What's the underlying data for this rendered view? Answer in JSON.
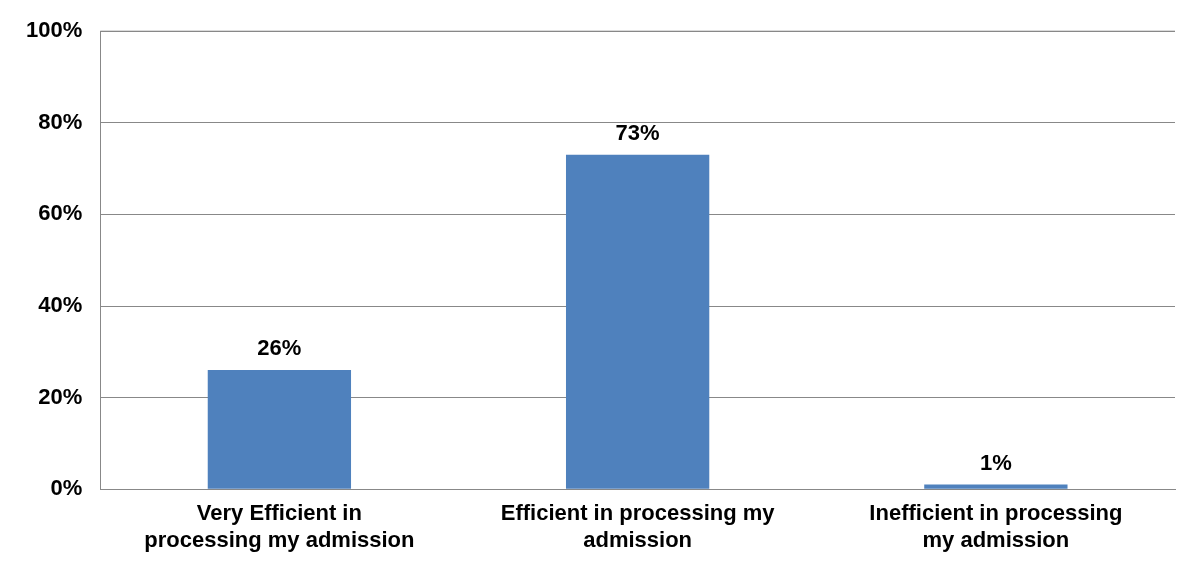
{
  "chart_data": {
    "type": "bar",
    "categories": [
      "Very Efficient in processing my admission",
      "Efficient in processing my admission",
      "Inefficient in processing my admission"
    ],
    "values": [
      26,
      73,
      1
    ],
    "color": "#4f81bd",
    "ylim": [
      0,
      100
    ],
    "yticks": [
      {
        "value": 0,
        "label": "0%"
      },
      {
        "value": 20,
        "label": "20%"
      },
      {
        "value": 40,
        "label": "40%"
      },
      {
        "value": 60,
        "label": "60%"
      },
      {
        "value": 80,
        "label": "80%"
      },
      {
        "value": 100,
        "label": "100%"
      }
    ],
    "grid": "y",
    "data_labels": true,
    "value_labels": [
      "26%",
      "73%",
      "1%"
    ]
  }
}
